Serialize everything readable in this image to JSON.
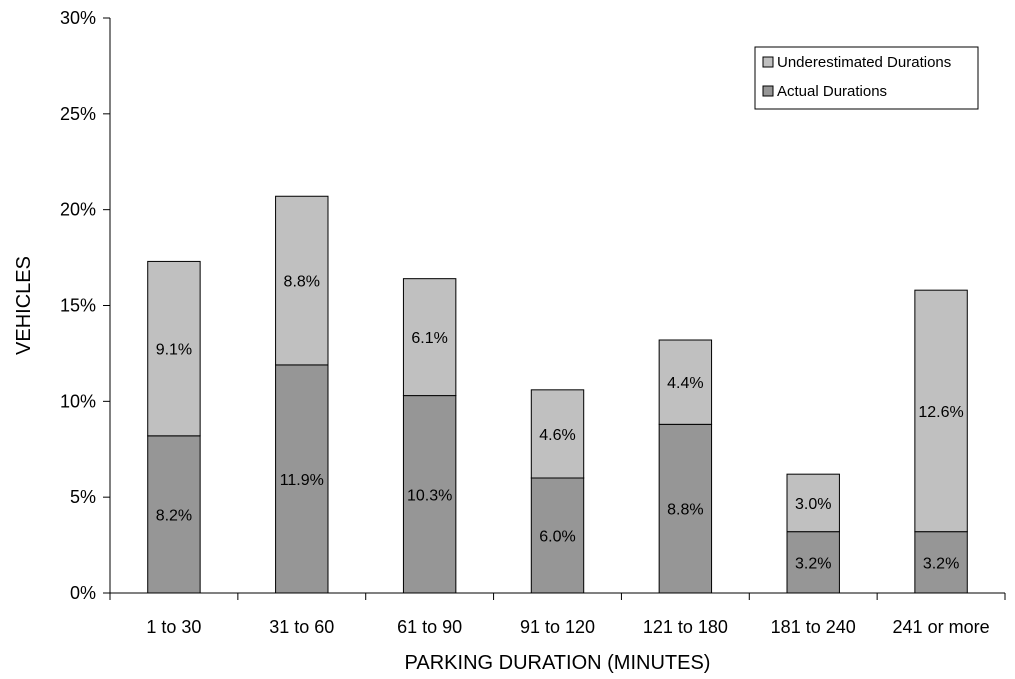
{
  "chart_data": {
    "type": "bar",
    "stacked": true,
    "categories": [
      "1 to 30",
      "31 to 60",
      "61 to 90",
      "91 to 120",
      "121 to 180",
      "181 to 240",
      "241 or more"
    ],
    "series": [
      {
        "name": "Actual Durations",
        "values": [
          8.2,
          11.9,
          10.3,
          6.0,
          8.8,
          3.2,
          3.2
        ],
        "labels": [
          "8.2%",
          "11.9%",
          "10.3%",
          "6.0%",
          "8.8%",
          "3.2%",
          "3.2%"
        ],
        "color": "#969696"
      },
      {
        "name": "Underestimated Durations",
        "values": [
          9.1,
          8.8,
          6.1,
          4.6,
          4.4,
          3.0,
          12.6
        ],
        "labels": [
          "9.1%",
          "8.8%",
          "6.1%",
          "4.6%",
          "4.4%",
          "3.0%",
          "12.6%"
        ],
        "color": "#c0c0c0"
      }
    ],
    "xlabel": "PARKING DURATION (MINUTES)",
    "ylabel": "VEHICLES",
    "ylim": [
      0,
      30
    ],
    "yticks": [
      0,
      5,
      10,
      15,
      20,
      25,
      30
    ],
    "ytick_labels": [
      "0%",
      "5%",
      "10%",
      "15%",
      "20%",
      "25%",
      "30%"
    ],
    "grid": false,
    "legend": {
      "position": "top-right",
      "entries": [
        "Underestimated Durations",
        "Actual Durations"
      ]
    }
  }
}
